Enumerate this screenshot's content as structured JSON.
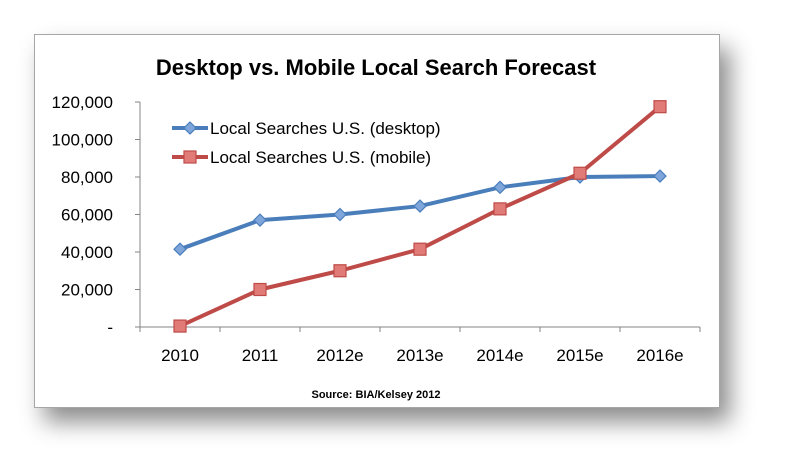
{
  "chart_data": {
    "type": "line",
    "title": "Desktop vs. Mobile Local Search Forecast",
    "source": "Source: BIA/Kelsey 2012",
    "categories": [
      "2010",
      "2011",
      "2012e",
      "2013e",
      "2014e",
      "2015e",
      "2016e"
    ],
    "ylim": [
      0,
      120000
    ],
    "yticks": [
      "-",
      "20,000",
      "40,000",
      "60,000",
      "80,000",
      "100,000",
      "120,000"
    ],
    "grid": false,
    "legend_position": "top-left",
    "series": [
      {
        "name": "Local Searches U.S. (desktop)",
        "marker": "diamond",
        "color": "#4a7ebb",
        "marker_fill": "#7ea6db",
        "values": [
          41500,
          57000,
          60000,
          64500,
          74500,
          80000,
          80500
        ]
      },
      {
        "name": "Local Searches U.S. (mobile)",
        "marker": "square",
        "color": "#be4b48",
        "marker_fill": "#e07b78",
        "values": [
          500,
          20000,
          30000,
          41500,
          63000,
          82000,
          117500
        ]
      }
    ]
  }
}
